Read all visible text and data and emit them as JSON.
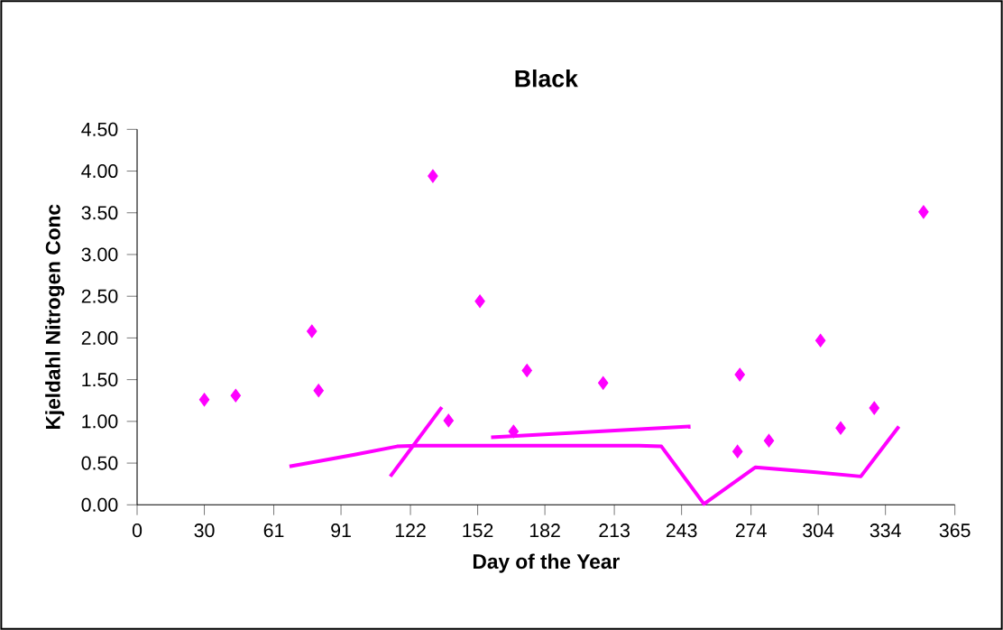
{
  "chart_data": {
    "type": "scatter",
    "title": "Black",
    "xlabel": "Day of the Year",
    "ylabel": "Kjeldahl Nitrogen Conc",
    "xlim": [
      0,
      365
    ],
    "ylim": [
      0,
      4.5
    ],
    "xticks": [
      0,
      30,
      61,
      91,
      122,
      152,
      182,
      213,
      243,
      274,
      304,
      334,
      365
    ],
    "yticks": [
      {
        "value": 0,
        "label": "0.00"
      },
      {
        "value": 0.5,
        "label": "0.50"
      },
      {
        "value": 1,
        "label": "1.00"
      },
      {
        "value": 1.5,
        "label": "1.50"
      },
      {
        "value": 2,
        "label": "2.00"
      },
      {
        "value": 2.5,
        "label": "2.50"
      },
      {
        "value": 3,
        "label": "3.00"
      },
      {
        "value": 3.5,
        "label": "3.50"
      },
      {
        "value": 4,
        "label": "4.00"
      },
      {
        "value": 4.5,
        "label": "4.50"
      }
    ],
    "grid": false,
    "legend": false,
    "series": [
      {
        "marker": "diamond",
        "color": "#ff00ff",
        "x": [
          30,
          44,
          78,
          81,
          132,
          139,
          153,
          168,
          174,
          208,
          268,
          269,
          282,
          305,
          314,
          329,
          351
        ],
        "values": [
          1.26,
          1.31,
          2.08,
          1.37,
          3.94,
          1.01,
          2.44,
          0.88,
          1.61,
          1.46,
          0.64,
          1.56,
          0.77,
          1.97,
          0.92,
          1.16,
          3.51
        ]
      },
      {
        "type": "line",
        "marker": "none",
        "line_style": "solid",
        "color": "#ff00ff",
        "x": [
          68,
          97,
          116,
          125,
          224,
          234,
          253,
          276,
          303,
          323,
          340
        ],
        "values": [
          0.46,
          0.6,
          0.7,
          0.71,
          0.71,
          0.7,
          0.01,
          0.45,
          0.39,
          0.34,
          0.94
        ]
      },
      {
        "type": "line",
        "marker": "none",
        "line_style": "solid",
        "color": "#ff00ff",
        "x": [
          113,
          136
        ],
        "values": [
          0.34,
          1.17
        ]
      },
      {
        "type": "line",
        "marker": "none",
        "line_style": "solid",
        "color": "#ff00ff",
        "x": [
          158,
          247
        ],
        "values": [
          0.81,
          0.94
        ]
      }
    ]
  }
}
